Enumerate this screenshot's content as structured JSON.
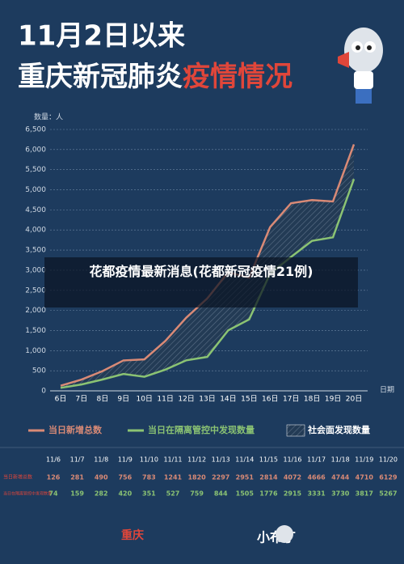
{
  "header": {
    "title_line1": "11月2日以来",
    "title_line2a": "重庆新冠肺炎",
    "title_line2b": "疫情情况"
  },
  "overlay": {
    "text": "花都疫情最新消息(花都新冠疫情21例)"
  },
  "chart_data": {
    "type": "line",
    "y_label": "数量：人",
    "x_label": "日期",
    "categories": [
      "6日",
      "7日",
      "8日",
      "9日",
      "10日",
      "11日",
      "12日",
      "13日",
      "14日",
      "15日",
      "16日",
      "17日",
      "18日",
      "19日",
      "20日"
    ],
    "series": [
      {
        "name": "当日新增总数",
        "color": "#d98a76",
        "values": [
          126,
          281,
          490,
          756,
          783,
          1241,
          1820,
          2297,
          2951,
          2814,
          4072,
          4666,
          4744,
          4710,
          6129
        ]
      },
      {
        "name": "当日在隔离管控中发现数量",
        "color": "#8bc373",
        "values": [
          74,
          159,
          282,
          420,
          351,
          527,
          759,
          844,
          1505,
          1776,
          2915,
          3331,
          3730,
          3817,
          5267
        ]
      }
    ],
    "area_legend": "社会面发现数量",
    "ylim": [
      0,
      6500
    ],
    "yticks": [
      0,
      {
        "value": 500,
        "label": "500"
      },
      {
        "value": 1000,
        "label": "1,000"
      },
      {
        "value": 1500,
        "label": "1,500"
      },
      {
        "value": 2000,
        "label": "2,000"
      },
      {
        "value": 2500,
        "label": "2,500"
      },
      {
        "value": 3000,
        "label": "3,000"
      },
      {
        "value": 3500,
        "label": "3,500"
      },
      {
        "value": 4000,
        "label": "4,000"
      },
      {
        "value": 4500,
        "label": "4,500"
      },
      {
        "value": 5000,
        "label": "5,000"
      },
      {
        "value": 5500,
        "label": "5,500"
      },
      {
        "value": 6000,
        "label": "6,000"
      },
      {
        "value": 6500,
        "label": "6,500"
      }
    ],
    "grid": true
  },
  "table": {
    "dates": [
      "11/6",
      "11/7",
      "11/8",
      "11/9",
      "11/10",
      "11/11",
      "11/12",
      "11/13",
      "11/14",
      "11/15",
      "11/16",
      "11/17",
      "11/18",
      "11/19",
      "11/20"
    ],
    "row_labels": [
      "当日新增总数",
      "当日在隔离管控中发现数量"
    ]
  },
  "footer": {
    "logo1": "重庆",
    "logo2": "小布丁"
  }
}
